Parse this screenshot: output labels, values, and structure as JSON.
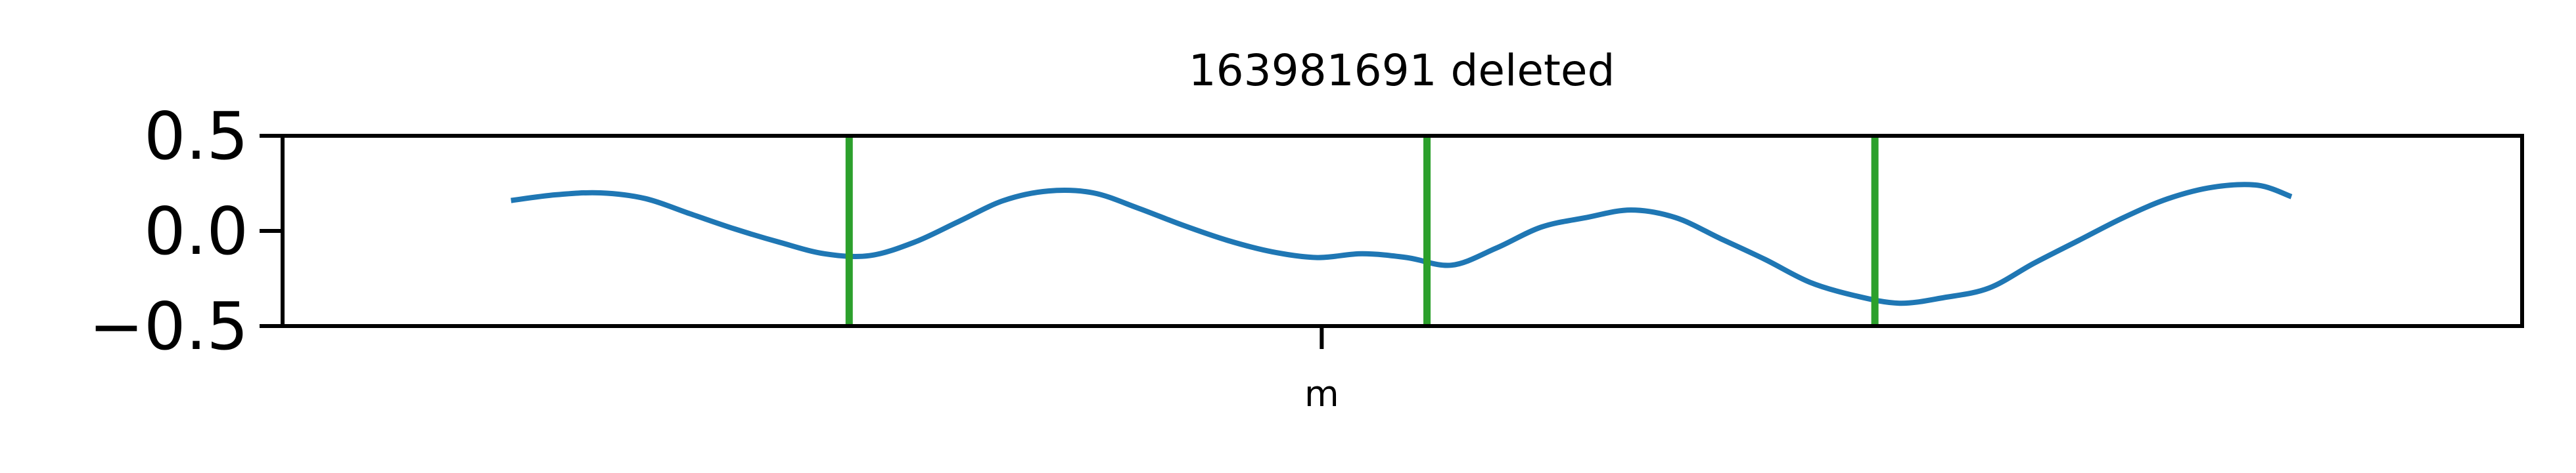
{
  "chart_data": {
    "type": "line",
    "title": "163981691 deleted",
    "xlabel": "",
    "ylabel": "",
    "ylim": [
      -0.5,
      0.5
    ],
    "yticks": [
      {
        "value": 0.5,
        "label": "0.5"
      },
      {
        "value": 0.0,
        "label": "0.0"
      },
      {
        "value": -0.5,
        "label": "−0.5"
      }
    ],
    "xlim": [
      0,
      1
    ],
    "xticks": [
      {
        "value": 0.464,
        "label": "m"
      }
    ],
    "grid": false,
    "series": [
      {
        "color": "#1f77b4",
        "x": [
          0.102,
          0.122,
          0.142,
          0.162,
          0.182,
          0.202,
          0.222,
          0.242,
          0.262,
          0.282,
          0.302,
          0.322,
          0.342,
          0.362,
          0.382,
          0.402,
          0.422,
          0.442,
          0.462,
          0.482,
          0.502,
          0.522,
          0.542,
          0.562,
          0.582,
          0.602,
          0.622,
          0.642,
          0.662,
          0.682,
          0.702,
          0.722,
          0.742,
          0.762,
          0.782,
          0.802,
          0.822,
          0.842,
          0.862,
          0.882,
          0.897
        ],
        "y": [
          0.16,
          0.19,
          0.2,
          0.17,
          0.09,
          0.01,
          -0.06,
          -0.12,
          -0.13,
          -0.06,
          0.05,
          0.16,
          0.21,
          0.2,
          0.12,
          0.03,
          -0.05,
          -0.11,
          -0.14,
          -0.12,
          -0.14,
          -0.18,
          -0.09,
          0.02,
          0.07,
          0.11,
          0.07,
          -0.04,
          -0.15,
          -0.27,
          -0.34,
          -0.38,
          -0.35,
          -0.3,
          -0.17,
          -0.05,
          0.07,
          0.17,
          0.23,
          0.24,
          0.18
        ]
      }
    ],
    "vlines": {
      "color": "#2ca02c",
      "x": [
        0.253,
        0.511,
        0.711
      ]
    }
  }
}
